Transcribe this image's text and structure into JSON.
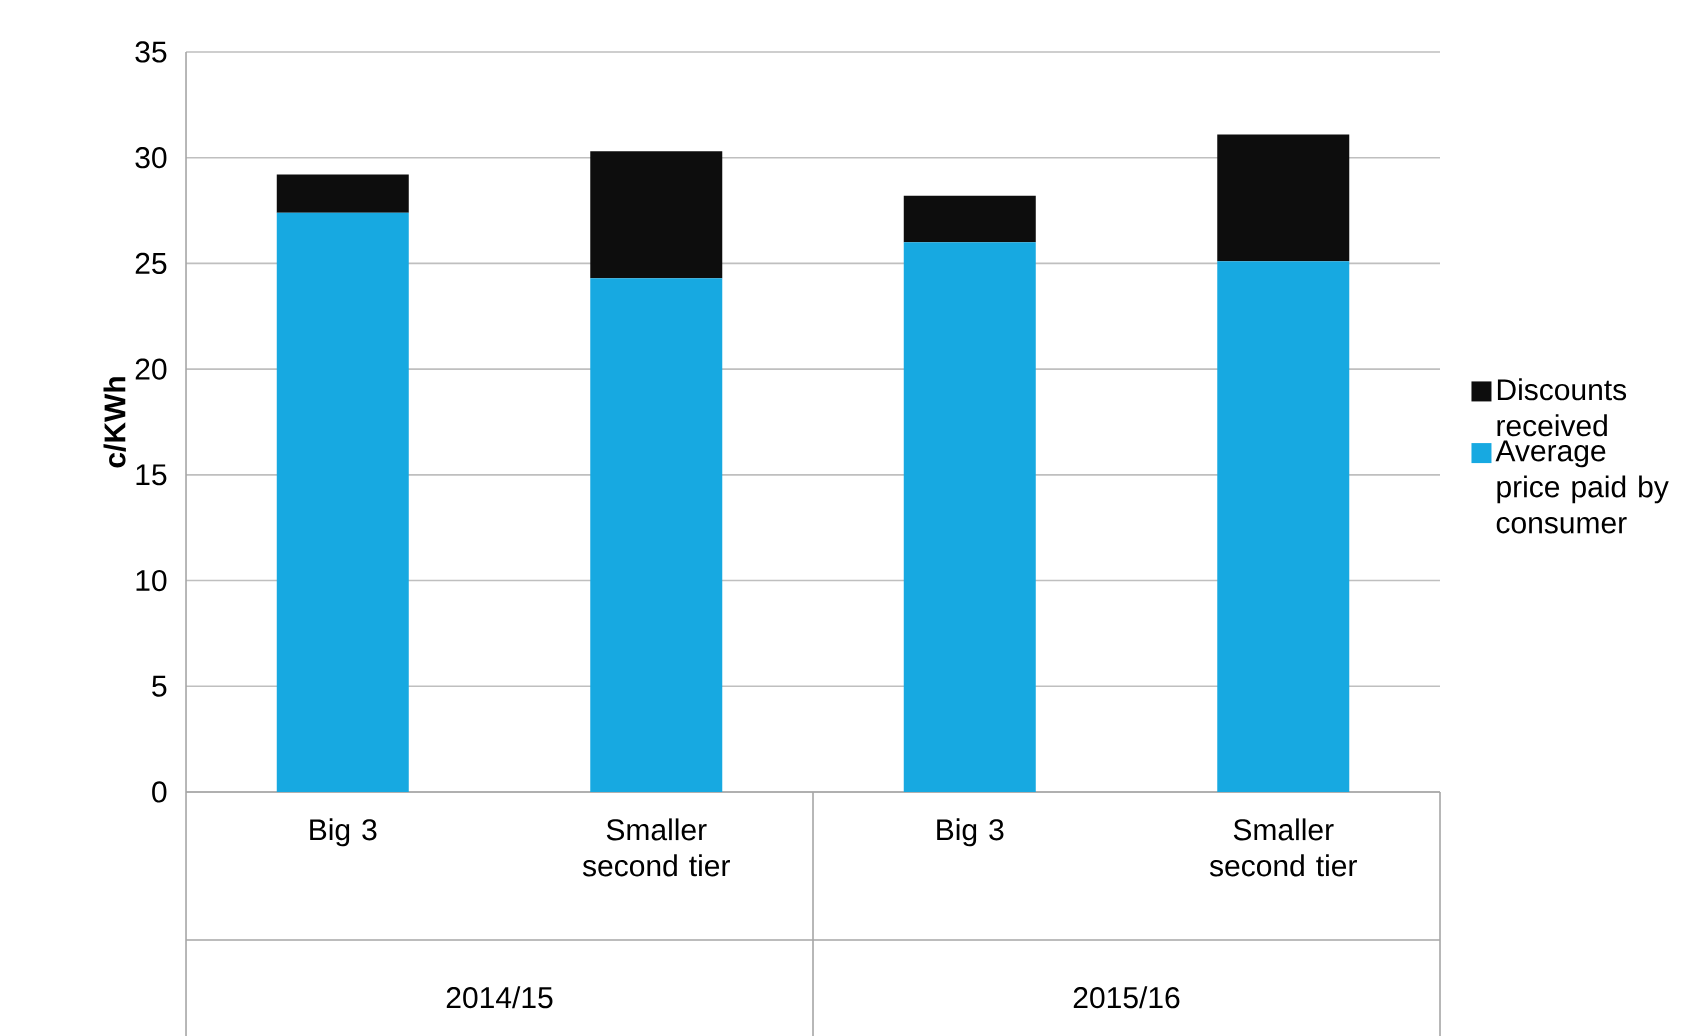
{
  "chart_data": {
    "type": "bar",
    "stacked": true,
    "ylabel": "c/KWh",
    "categories": [
      "Big 3",
      "Smaller second tier",
      "Big 3",
      "Smaller second tier"
    ],
    "series": [
      {
        "name": "Average price paid by consumer",
        "color": "#17a9e1",
        "values": [
          27.4,
          24.3,
          26.0,
          25.1
        ]
      },
      {
        "name": "Discounts received",
        "color": "#0d0d0d",
        "values": [
          1.8,
          6.0,
          2.2,
          6.0
        ]
      }
    ],
    "ylim": [
      0,
      35
    ],
    "yticks": [
      0,
      5,
      10,
      15,
      20,
      25,
      30,
      35
    ],
    "grid": "y",
    "legend": "right",
    "annotations": [
      "2014/15",
      "2015/16"
    ]
  }
}
